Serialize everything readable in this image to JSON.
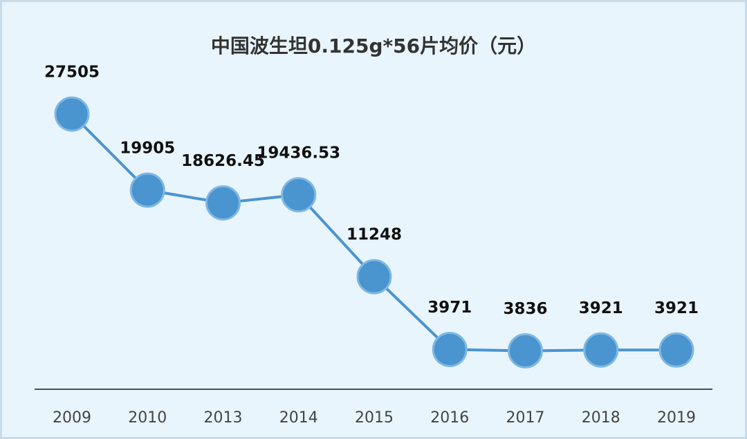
{
  "chart_data": {
    "type": "line",
    "title": "中国波生坦0.125g*56片均价（元）",
    "categories": [
      "2009",
      "2010",
      "2013",
      "2014",
      "2015",
      "2016",
      "2017",
      "2018",
      "2019"
    ],
    "values": [
      27505,
      19905,
      18626.45,
      19436.53,
      11248,
      3971,
      3836,
      3921,
      3921
    ],
    "color": "#4a94d0"
  }
}
